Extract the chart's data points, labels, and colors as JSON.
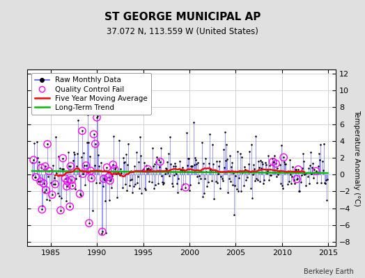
{
  "title": "ST GEORGE MUNICIPAL AP",
  "subtitle": "37.072 N, 113.559 W (United States)",
  "ylabel": "Temperature Anomaly (°C)",
  "credit": "Berkeley Earth",
  "xlim": [
    1982.5,
    2015.8
  ],
  "ylim": [
    -8.5,
    12.5
  ],
  "yticks": [
    -8,
    -6,
    -4,
    -2,
    0,
    2,
    4,
    6,
    8,
    10,
    12
  ],
  "xticks": [
    1985,
    1990,
    1995,
    2000,
    2005,
    2010,
    2015
  ],
  "bg_color": "#e0e0e0",
  "plot_bg": "#ffffff",
  "line_color": "#5555ff",
  "dot_color": "#000000",
  "ma_color": "#ff0000",
  "trend_color": "#00bb00",
  "qc_color": "#ff00ff",
  "title_fontsize": 11,
  "subtitle_fontsize": 8.5,
  "tick_fontsize": 8,
  "ylabel_fontsize": 7.5,
  "legend_fontsize": 7.5,
  "credit_fontsize": 7
}
